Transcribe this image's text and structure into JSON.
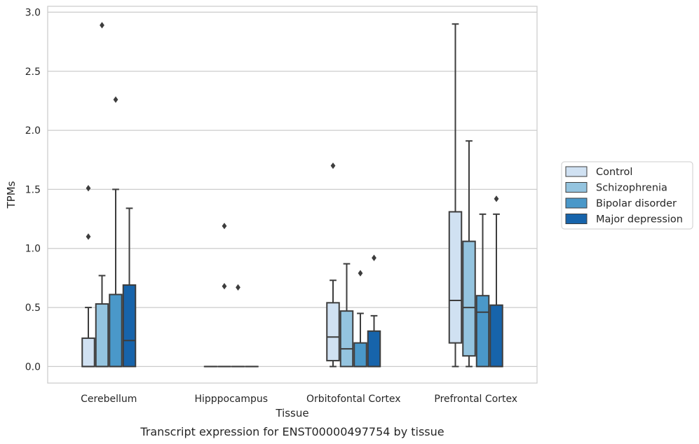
{
  "chart_data": {
    "type": "box",
    "caption": "Transcript expression for ENST00000497754 by tissue",
    "xlabel": "Tissue",
    "ylabel": "TPMs",
    "ylim": [
      -0.14,
      3.05
    ],
    "yticks": [
      0.0,
      0.5,
      1.0,
      1.5,
      2.0,
      2.5,
      3.0
    ],
    "ytick_labels": [
      "0.0",
      "0.5",
      "1.0",
      "1.5",
      "2.0",
      "2.5",
      "3.0"
    ],
    "grid": "horizontal",
    "legend_position": "right",
    "categories": [
      "Cerebellum",
      "Hipppocampus",
      "Orbitofontal Cortex",
      "Prefrontal Cortex"
    ],
    "series": [
      {
        "name": "Control",
        "color": "#d0e1f2",
        "boxes": [
          {
            "whislo": 0.0,
            "q1": 0.0,
            "median": 0.0,
            "q3": 0.24,
            "whishi": 0.5,
            "fliers": [
              1.1,
              1.51
            ]
          },
          {
            "whislo": 0.0,
            "q1": 0.0,
            "median": 0.0,
            "q3": 0.0,
            "whishi": 0.0,
            "fliers": []
          },
          {
            "whislo": 0.0,
            "q1": 0.05,
            "median": 0.25,
            "q3": 0.54,
            "whishi": 0.73,
            "fliers": [
              1.7
            ]
          },
          {
            "whislo": 0.0,
            "q1": 0.2,
            "median": 0.56,
            "q3": 1.31,
            "whishi": 2.9,
            "fliers": []
          }
        ]
      },
      {
        "name": "Schizophrenia",
        "color": "#94c4df",
        "boxes": [
          {
            "whislo": 0.0,
            "q1": 0.0,
            "median": 0.0,
            "q3": 0.53,
            "whishi": 0.77,
            "fliers": [
              2.89
            ]
          },
          {
            "whislo": 0.0,
            "q1": 0.0,
            "median": 0.0,
            "q3": 0.0,
            "whishi": 0.0,
            "fliers": [
              0.68,
              1.19
            ]
          },
          {
            "whislo": 0.0,
            "q1": 0.0,
            "median": 0.15,
            "q3": 0.47,
            "whishi": 0.87,
            "fliers": []
          },
          {
            "whislo": 0.0,
            "q1": 0.09,
            "median": 0.5,
            "q3": 1.06,
            "whishi": 1.91,
            "fliers": []
          }
        ]
      },
      {
        "name": "Bipolar disorder",
        "color": "#4a98c9",
        "boxes": [
          {
            "whislo": 0.0,
            "q1": 0.0,
            "median": 0.0,
            "q3": 0.61,
            "whishi": 1.5,
            "fliers": [
              2.26
            ]
          },
          {
            "whislo": 0.0,
            "q1": 0.0,
            "median": 0.0,
            "q3": 0.0,
            "whishi": 0.0,
            "fliers": [
              0.67
            ]
          },
          {
            "whislo": 0.0,
            "q1": 0.0,
            "median": 0.0,
            "q3": 0.2,
            "whishi": 0.45,
            "fliers": [
              0.79
            ]
          },
          {
            "whislo": 0.0,
            "q1": 0.0,
            "median": 0.46,
            "q3": 0.6,
            "whishi": 1.29,
            "fliers": []
          }
        ]
      },
      {
        "name": "Major depression",
        "color": "#1764ab",
        "boxes": [
          {
            "whislo": 0.0,
            "q1": 0.0,
            "median": 0.22,
            "q3": 0.69,
            "whishi": 1.34,
            "fliers": []
          },
          {
            "whislo": 0.0,
            "q1": 0.0,
            "median": 0.0,
            "q3": 0.0,
            "whishi": 0.0,
            "fliers": []
          },
          {
            "whislo": 0.0,
            "q1": 0.0,
            "median": 0.0,
            "q3": 0.3,
            "whishi": 0.43,
            "fliers": [
              0.92
            ]
          },
          {
            "whislo": 0.0,
            "q1": 0.0,
            "median": 0.0,
            "q3": 0.52,
            "whishi": 1.29,
            "fliers": [
              1.42
            ]
          }
        ]
      }
    ]
  }
}
